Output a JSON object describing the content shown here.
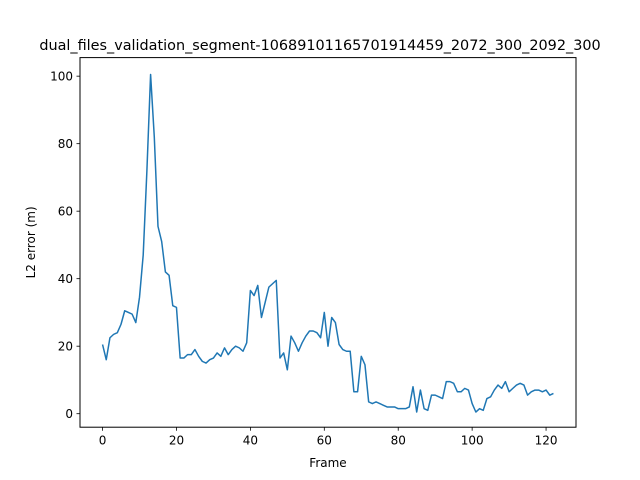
{
  "chart_data": {
    "type": "line",
    "title": "dual_files_validation_segment-10689101165701914459_2072_300_2092_300",
    "xlabel": "Frame",
    "ylabel": "L2 error (m)",
    "xlim": [
      -6.1,
      128.1
    ],
    "ylim": [
      -4.0,
      105.5
    ],
    "xticks": [
      0,
      20,
      40,
      60,
      80,
      100,
      120
    ],
    "yticks": [
      0,
      20,
      40,
      60,
      80,
      100
    ],
    "grid": false,
    "line_color": "#1f77b4",
    "series": [
      {
        "values": [
          20.5,
          16.0,
          22.5,
          23.5,
          24.0,
          26.5,
          30.5,
          30.0,
          29.5,
          27.0,
          34.5,
          47.0,
          72.0,
          100.5,
          82.0,
          55.5,
          51.0,
          42.0,
          41.0,
          32.0,
          31.5,
          16.5,
          16.5,
          17.5,
          17.5,
          19.0,
          17.0,
          15.5,
          15.0,
          16.0,
          16.5,
          18.0,
          17.0,
          19.5,
          17.5,
          19.0,
          20.0,
          19.5,
          18.5,
          21.0,
          36.5,
          35.0,
          38.0,
          28.5,
          33.0,
          37.5,
          38.5,
          39.5,
          16.5,
          18.0,
          13.0,
          23.0,
          21.0,
          18.5,
          21.0,
          23.0,
          24.5,
          24.5,
          24.0,
          22.5,
          30.0,
          20.0,
          28.5,
          27.0,
          20.5,
          19.0,
          18.5,
          18.5,
          6.5,
          6.5,
          17.0,
          14.5,
          3.5,
          3.0,
          3.5,
          3.0,
          2.5,
          2.0,
          2.0,
          2.0,
          1.5,
          1.5,
          1.5,
          2.0,
          8.0,
          0.5,
          7.0,
          1.5,
          1.0,
          5.5,
          5.5,
          5.0,
          4.5,
          9.5,
          9.5,
          9.0,
          6.5,
          6.5,
          7.5,
          7.0,
          3.0,
          0.5,
          1.5,
          1.0,
          4.5,
          5.0,
          7.0,
          8.5,
          7.5,
          9.5,
          6.5,
          7.5,
          8.5,
          9.0,
          8.5,
          5.5,
          6.5,
          7.0,
          7.0,
          6.5,
          7.0,
          5.5,
          6.0
        ]
      }
    ]
  }
}
